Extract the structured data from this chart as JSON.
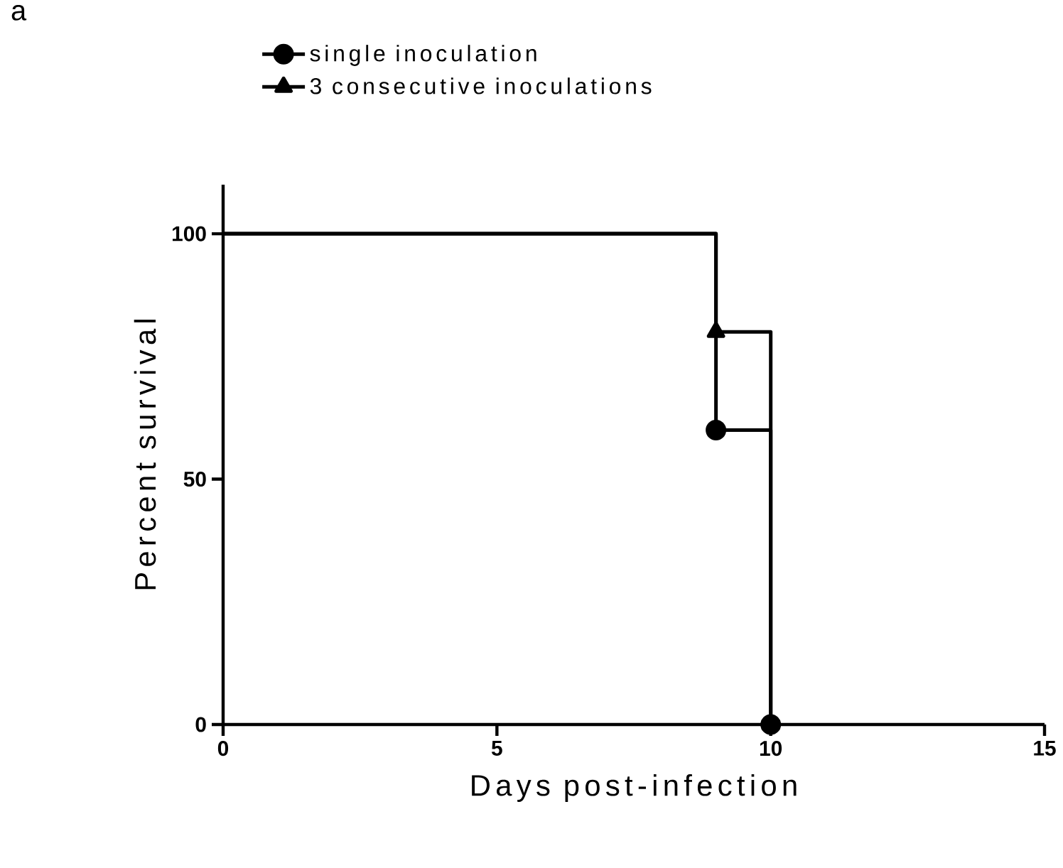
{
  "chart_data": {
    "type": "step",
    "xlabel": "Days post-infection",
    "ylabel": "Percent survival",
    "annotations": [
      "a"
    ],
    "xlim": [
      0,
      15
    ],
    "ylim": [
      0,
      110
    ],
    "xticks": [
      0,
      5,
      10,
      15
    ],
    "yticks": [
      0,
      50,
      100
    ],
    "grid": false,
    "legend": "top left",
    "series": [
      {
        "name": "single inoculation",
        "color": "#000000",
        "marker": "circle",
        "x": [
          0,
          9,
          10
        ],
        "values": [
          100,
          60,
          0
        ]
      },
      {
        "name": "3 consecutive inoculations",
        "color": "#000000",
        "marker": "triangle",
        "x": [
          0,
          9,
          10
        ],
        "values": [
          100,
          80,
          0
        ]
      }
    ]
  }
}
